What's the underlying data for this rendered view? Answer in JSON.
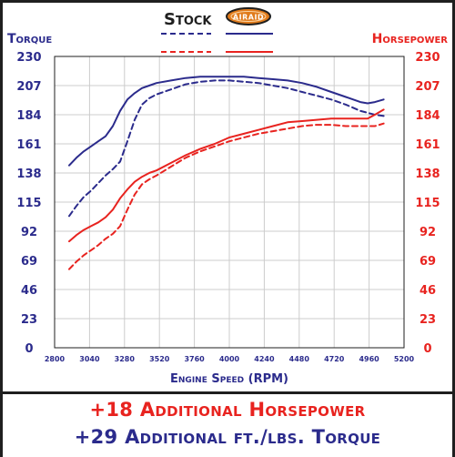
{
  "colors": {
    "torque": "#2b2b8c",
    "horsepower": "#e8231f",
    "grid": "#cccccc",
    "frame": "#1f1f1f"
  },
  "legend": {
    "stock_label": "Stock",
    "airaid_badge_text": "AIRAID"
  },
  "banner": {
    "hp_gain": "+18 Additional Horsepower",
    "torque_gain": "+29 Additional ft./lbs. Torque"
  },
  "chart_data": {
    "type": "line",
    "title": "",
    "xlabel": "Engine Speed (RPM)",
    "ylabel_left": "Torque",
    "ylabel_right": "Horsepower",
    "xlim": [
      2800,
      5200
    ],
    "ylim": [
      0,
      230
    ],
    "x_ticks": [
      2800,
      3040,
      3280,
      3520,
      3760,
      4000,
      4240,
      4480,
      4720,
      4960,
      5200
    ],
    "y_ticks": [
      0,
      23,
      46,
      69,
      92,
      115,
      138,
      161,
      184,
      207,
      230
    ],
    "grid": true,
    "legend_position": "top-center",
    "series": [
      {
        "name": "Stock",
        "axis": "left",
        "style": "dashed",
        "color": "#2b2b8c",
        "x": [
          2900,
          2950,
          3000,
          3050,
          3100,
          3150,
          3200,
          3250,
          3300,
          3350,
          3400,
          3450,
          3500,
          3600,
          3700,
          3800,
          3900,
          4000,
          4100,
          4200,
          4300,
          4400,
          4500,
          4600,
          4700,
          4800,
          4900,
          5000,
          5060
        ],
        "y": [
          104,
          112,
          119,
          124,
          130,
          136,
          141,
          147,
          163,
          180,
          192,
          197,
          200,
          204,
          208,
          210,
          211,
          211,
          210,
          209,
          207,
          205,
          202,
          199,
          196,
          192,
          187,
          184,
          183
        ]
      },
      {
        "name": "Airaid",
        "axis": "left",
        "style": "solid",
        "color": "#2b2b8c",
        "x": [
          2900,
          2950,
          3000,
          3050,
          3100,
          3150,
          3200,
          3250,
          3300,
          3350,
          3400,
          3450,
          3500,
          3600,
          3700,
          3800,
          3900,
          4000,
          4100,
          4200,
          4300,
          4400,
          4500,
          4600,
          4700,
          4800,
          4900,
          4950,
          5000,
          5060
        ],
        "y": [
          144,
          150,
          155,
          159,
          163,
          167,
          175,
          187,
          196,
          201,
          205,
          207,
          209,
          211,
          213,
          214,
          214,
          214,
          214,
          213,
          212,
          211,
          209,
          206,
          202,
          198,
          194,
          193,
          194,
          196
        ]
      },
      {
        "name": "Stock",
        "axis": "right",
        "style": "dashed",
        "color": "#e8231f",
        "x": [
          2900,
          2950,
          3000,
          3050,
          3100,
          3150,
          3200,
          3250,
          3300,
          3350,
          3400,
          3450,
          3500,
          3600,
          3700,
          3800,
          3900,
          4000,
          4100,
          4200,
          4300,
          4400,
          4500,
          4600,
          4700,
          4800,
          4900,
          5000,
          5060
        ],
        "y": [
          62,
          68,
          73,
          77,
          81,
          86,
          90,
          96,
          109,
          121,
          129,
          133,
          136,
          143,
          150,
          155,
          159,
          163,
          166,
          169,
          171,
          173,
          175,
          176,
          176,
          175,
          175,
          175,
          177
        ]
      },
      {
        "name": "Airaid",
        "axis": "right",
        "style": "solid",
        "color": "#e8231f",
        "x": [
          2900,
          2950,
          3000,
          3050,
          3100,
          3150,
          3200,
          3250,
          3300,
          3350,
          3400,
          3450,
          3500,
          3600,
          3700,
          3800,
          3900,
          4000,
          4100,
          4200,
          4300,
          4400,
          4500,
          4600,
          4700,
          4800,
          4900,
          4950,
          5000,
          5060
        ],
        "y": [
          84,
          89,
          93,
          96,
          99,
          103,
          109,
          118,
          125,
          131,
          135,
          138,
          140,
          146,
          152,
          157,
          161,
          166,
          169,
          172,
          175,
          178,
          179,
          180,
          181,
          181,
          181,
          181,
          184,
          188
        ]
      }
    ]
  }
}
